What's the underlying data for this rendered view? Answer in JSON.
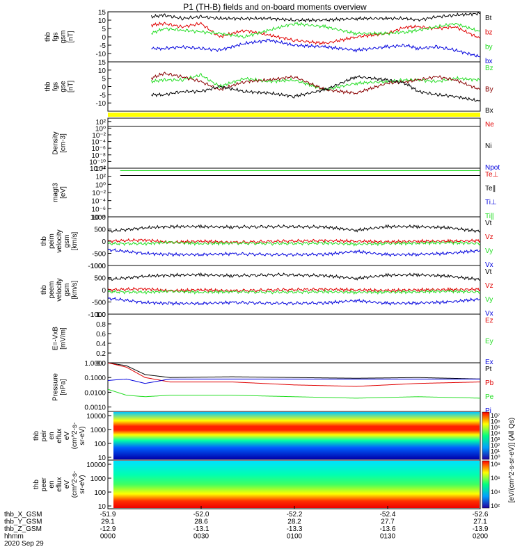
{
  "title": "P1 (TH-B) fields and on-board moments overview",
  "colors": {
    "black": "#000000",
    "red": "#e00000",
    "green": "#22dd22",
    "blue": "#0000dd",
    "darkred": "#880000",
    "yellow": "#ffff00"
  },
  "chart_data": [
    {
      "type": "line",
      "ylabel": [
        "thb",
        "fgs",
        "gsm",
        "[nT]"
      ],
      "ylim": [
        -15,
        15
      ],
      "yticks": [
        {
          "v": 15,
          "t": "15"
        },
        {
          "v": 10,
          "t": "10"
        },
        {
          "v": 5,
          "t": "5"
        },
        {
          "v": 0,
          "t": "0"
        },
        {
          "v": -5,
          "t": "-5"
        },
        {
          "v": -10,
          "t": "-10"
        }
      ],
      "series": [
        {
          "name": "Bt",
          "color": "black",
          "x": [
            7,
            9,
            12,
            15,
            18,
            22,
            26,
            30,
            35,
            40,
            45,
            48,
            50,
            53,
            56,
            60
          ],
          "y": [
            12,
            13,
            11,
            12,
            11,
            11,
            11,
            10,
            10,
            11,
            11,
            11,
            10,
            12,
            13,
            14
          ]
        },
        {
          "name": "bz",
          "color": "red",
          "x": [
            7,
            9,
            12,
            15,
            18,
            22,
            26,
            30,
            35,
            40,
            45,
            48,
            50,
            53,
            56,
            60
          ],
          "y": [
            7,
            8,
            6,
            8,
            0,
            4,
            1,
            -2,
            -4,
            0,
            2,
            6,
            6,
            5,
            6,
            -1
          ]
        },
        {
          "name": "by",
          "color": "green",
          "x": [
            7,
            9,
            12,
            15,
            18,
            22,
            26,
            30,
            35,
            40,
            45,
            48,
            50,
            53,
            56,
            60
          ],
          "y": [
            2,
            5,
            4,
            3,
            2,
            0,
            4,
            8,
            6,
            2,
            2,
            3,
            4,
            6,
            8,
            3
          ]
        },
        {
          "name": "bx",
          "color": "blue",
          "x": [
            7,
            9,
            12,
            15,
            18,
            22,
            26,
            30,
            35,
            40,
            45,
            48,
            50,
            53,
            56,
            60
          ],
          "y": [
            -7,
            -7,
            -6,
            -7,
            -8,
            -4,
            -2,
            -5,
            -6,
            -8,
            -6,
            -5,
            -7,
            -6,
            -8,
            -12
          ]
        }
      ]
    },
    {
      "type": "line",
      "ylabel": [
        "thb",
        "fgs",
        "gse",
        "[nT]"
      ],
      "ylim": [
        -15,
        15
      ],
      "yticks": [
        {
          "v": 15,
          "t": "15"
        },
        {
          "v": 10,
          "t": "10"
        },
        {
          "v": 5,
          "t": "5"
        },
        {
          "v": 0,
          "t": "0"
        },
        {
          "v": -5,
          "t": "-5"
        },
        {
          "v": -10,
          "t": "-10"
        }
      ],
      "series": [
        {
          "name": "Bz",
          "color": "green",
          "x": [
            7,
            9,
            12,
            15,
            18,
            22,
            26,
            30,
            35,
            40,
            45,
            48,
            50,
            53,
            56,
            60
          ],
          "y": [
            3,
            4,
            4,
            7,
            0,
            5,
            3,
            4,
            -2,
            2,
            3,
            4,
            4,
            3,
            5,
            4
          ]
        },
        {
          "name": "By",
          "color": "darkred",
          "x": [
            7,
            9,
            12,
            15,
            18,
            22,
            26,
            30,
            35,
            40,
            45,
            48,
            50,
            53,
            56,
            60
          ],
          "y": [
            5,
            8,
            6,
            3,
            -2,
            3,
            4,
            6,
            -2,
            -4,
            2,
            3,
            4,
            6,
            4,
            -2
          ]
        },
        {
          "name": "Bx",
          "color": "black",
          "x": [
            7,
            9,
            12,
            15,
            18,
            22,
            26,
            30,
            35,
            40,
            45,
            48,
            50,
            53,
            56,
            60
          ],
          "y": [
            -5,
            -5,
            -3,
            -3,
            0,
            -3,
            -4,
            -6,
            -2,
            6,
            4,
            2,
            -3,
            -5,
            -6,
            -9
          ]
        }
      ]
    },
    {
      "type": "line",
      "ylabel": [
        "Density",
        "[cm-3]"
      ],
      "log": true,
      "ylim": [
        -12,
        3
      ],
      "yticks": [
        {
          "v": 2,
          "t": "10²"
        },
        {
          "v": 0,
          "t": "10⁰"
        },
        {
          "v": -2,
          "t": "10⁻²"
        },
        {
          "v": -4,
          "t": "10⁻⁴"
        },
        {
          "v": -6,
          "t": "10⁻⁶"
        },
        {
          "v": -8,
          "t": "10⁻⁸"
        },
        {
          "v": -10,
          "t": "10⁻¹⁰"
        },
        {
          "v": -12,
          "t": "10⁻¹²"
        }
      ],
      "series": [
        {
          "name": "Ne",
          "color": "red",
          "x": [
            0,
            20,
            40,
            60
          ],
          "y": [
            0.6,
            0.6,
            0.6,
            0.6
          ]
        },
        {
          "name": "Ni",
          "color": "black",
          "x": [
            0,
            20,
            40,
            60
          ],
          "y": [
            0.6,
            0.6,
            0.6,
            0.6
          ]
        },
        {
          "name": "Npot",
          "color": "blue",
          "x": [],
          "y": []
        }
      ]
    },
    {
      "type": "line",
      "ylabel": [
        "magt3",
        "[eV]"
      ],
      "log": true,
      "ylim": [
        -8,
        4
      ],
      "yticks": [
        {
          "v": 4,
          "t": "10⁴"
        },
        {
          "v": 2,
          "t": "10²"
        },
        {
          "v": 0,
          "t": "10⁰"
        },
        {
          "v": -2,
          "t": "10⁻²"
        },
        {
          "v": -4,
          "t": "10⁻⁴"
        },
        {
          "v": -6,
          "t": "10⁻⁶"
        },
        {
          "v": -8,
          "t": "10⁻⁸"
        }
      ],
      "series": [
        {
          "name": "Te⊥",
          "color": "red",
          "x": [
            2,
            60
          ],
          "y": [
            2.2,
            2.2
          ]
        },
        {
          "name": "Te∥",
          "color": "black",
          "x": [
            2,
            60
          ],
          "y": [
            2.2,
            2.2
          ]
        },
        {
          "name": "Ti⊥",
          "color": "blue",
          "x": [
            2,
            60
          ],
          "y": [
            3.4,
            3.4
          ]
        },
        {
          "name": "Ti∥",
          "color": "green",
          "x": [
            2,
            60
          ],
          "y": [
            3.4,
            3.4
          ]
        }
      ]
    },
    {
      "type": "line",
      "ylabel": [
        "thb",
        "peim",
        "velocity",
        "gsm",
        "[km/s]"
      ],
      "ylim": [
        -1000,
        1000
      ],
      "yticks": [
        {
          "v": 1000,
          "t": "1000"
        },
        {
          "v": 500,
          "t": "500"
        },
        {
          "v": 0,
          "t": "0"
        },
        {
          "v": -500,
          "t": "-500"
        },
        {
          "v": -1000,
          "t": "-1000"
        }
      ],
      "series": [
        {
          "name": "Vt",
          "color": "black",
          "x": [
            0,
            6,
            10,
            15,
            20,
            28,
            35,
            40,
            45,
            50,
            55,
            60
          ],
          "y": [
            400,
            550,
            600,
            600,
            580,
            600,
            580,
            450,
            600,
            600,
            550,
            400
          ]
        },
        {
          "name": "Vz",
          "color": "red",
          "x": [
            0,
            6,
            10,
            15,
            20,
            28,
            35,
            40,
            45,
            50,
            55,
            60
          ],
          "y": [
            0,
            50,
            -50,
            0,
            -50,
            0,
            20,
            0,
            -30,
            0,
            0,
            20
          ]
        },
        {
          "name": "Vy",
          "color": "green",
          "x": [
            0,
            6,
            10,
            15,
            20,
            28,
            35,
            40,
            45,
            50,
            55,
            60
          ],
          "y": [
            -100,
            -100,
            -50,
            -100,
            -80,
            -100,
            -80,
            -120,
            -100,
            -80,
            -60,
            -100
          ]
        },
        {
          "name": "Vx",
          "color": "blue",
          "x": [
            0,
            6,
            10,
            15,
            20,
            28,
            35,
            40,
            45,
            50,
            55,
            60
          ],
          "y": [
            -350,
            -500,
            -550,
            -550,
            -520,
            -560,
            -540,
            -420,
            -560,
            -540,
            -500,
            -380
          ]
        }
      ]
    },
    {
      "type": "line",
      "ylabel": [
        "thb",
        "peem",
        "velocity",
        "gsm",
        "[km/s]"
      ],
      "ylim": [
        -1000,
        1000
      ],
      "yticks": [
        {
          "v": 1000,
          "t": "1000"
        },
        {
          "v": 500,
          "t": "500"
        },
        {
          "v": 0,
          "t": "0"
        },
        {
          "v": -500,
          "t": "-500"
        },
        {
          "v": -1000,
          "t": "-1000"
        }
      ],
      "series": [
        {
          "name": "Vt",
          "color": "black",
          "x": [
            0,
            6,
            10,
            15,
            20,
            28,
            35,
            40,
            45,
            50,
            55,
            60
          ],
          "y": [
            420,
            560,
            600,
            620,
            580,
            620,
            580,
            470,
            600,
            620,
            560,
            420
          ]
        },
        {
          "name": "Vz",
          "color": "red",
          "x": [
            0,
            6,
            10,
            15,
            20,
            28,
            35,
            40,
            45,
            50,
            55,
            60
          ],
          "y": [
            0,
            40,
            -40,
            0,
            -40,
            0,
            20,
            0,
            -30,
            0,
            10,
            20
          ]
        },
        {
          "name": "Vy",
          "color": "green",
          "x": [
            0,
            6,
            10,
            15,
            20,
            28,
            35,
            40,
            45,
            50,
            55,
            60
          ],
          "y": [
            -80,
            -100,
            -60,
            -100,
            -80,
            -100,
            -80,
            -100,
            -100,
            -80,
            -60,
            -90
          ]
        },
        {
          "name": "Vx",
          "color": "blue",
          "x": [
            0,
            6,
            10,
            15,
            20,
            28,
            35,
            40,
            45,
            50,
            55,
            60
          ],
          "y": [
            -350,
            -520,
            -560,
            -560,
            -520,
            -560,
            -540,
            -440,
            -560,
            -540,
            -500,
            -380
          ]
        }
      ]
    },
    {
      "type": "line",
      "ylabel": [
        "E=-VxB",
        "[mV/m]"
      ],
      "ylim": [
        0,
        1
      ],
      "yticks": [
        {
          "v": 1,
          "t": "1.0"
        },
        {
          "v": 0.8,
          "t": "0.8"
        },
        {
          "v": 0.6,
          "t": "0.6"
        },
        {
          "v": 0.4,
          "t": "0.4"
        },
        {
          "v": 0.2,
          "t": "0.2"
        },
        {
          "v": 0,
          "t": "0.0"
        }
      ],
      "series": [
        {
          "name": "Ez",
          "color": "red",
          "x": [],
          "y": []
        },
        {
          "name": "Ey",
          "color": "green",
          "x": [],
          "y": []
        },
        {
          "name": "Ex",
          "color": "blue",
          "x": [],
          "y": []
        }
      ]
    },
    {
      "type": "line",
      "ylabel": [
        "Pressure",
        "[nPa]"
      ],
      "log": true,
      "ylim": [
        -3.3,
        0
      ],
      "yticks": [
        {
          "v": 0,
          "t": "1.0000"
        },
        {
          "v": -1,
          "t": "0.1000"
        },
        {
          "v": -2,
          "t": "0.0100"
        },
        {
          "v": -3,
          "t": "0.0010"
        }
      ],
      "series": [
        {
          "name": "Pt",
          "color": "black",
          "x": [
            0,
            3,
            6,
            10,
            20,
            30,
            40,
            50,
            60
          ],
          "y": [
            0,
            -0.2,
            -0.8,
            -1.0,
            -0.95,
            -1.0,
            -1.05,
            -1.0,
            -1.1
          ]
        },
        {
          "name": "Pb",
          "color": "red",
          "x": [
            0,
            3,
            6,
            10,
            20,
            30,
            40,
            50,
            60
          ],
          "y": [
            0,
            -0.3,
            -1.0,
            -1.3,
            -1.3,
            -1.5,
            -1.6,
            -1.4,
            -1.3
          ]
        },
        {
          "name": "Pe",
          "color": "green",
          "x": [
            0,
            3,
            6,
            10,
            20,
            30,
            40,
            50,
            60
          ],
          "y": [
            -1.8,
            -2.2,
            -2.3,
            -2.2,
            -2.2,
            -2.3,
            -2.4,
            -2.3,
            -2.4
          ]
        },
        {
          "name": "Pi",
          "color": "blue",
          "x": [
            0,
            3,
            6,
            10,
            20,
            30,
            40,
            50,
            60
          ],
          "y": [
            -1.2,
            -1.1,
            -1.4,
            -1.1,
            -1.1,
            -1.1,
            -1.1,
            -1.1,
            -1.1
          ]
        }
      ]
    },
    {
      "type": "heatmap",
      "ylabel": [
        "thb",
        "peir",
        "en",
        "eflux",
        "eV",
        "(cm^2-s-",
        "sr-eV)"
      ],
      "yticks": [
        {
          "v": 4,
          "t": "10000"
        },
        {
          "v": 3,
          "t": "1000"
        },
        {
          "v": 2,
          "t": "100"
        },
        {
          "v": 1,
          "t": "10"
        }
      ],
      "colorbar": {
        "ticks": [
          "10⁷",
          "10⁶",
          "10⁵",
          "10⁴",
          "10³",
          "10²",
          "10¹",
          "10⁰"
        ]
      }
    },
    {
      "type": "heatmap",
      "ylabel": [
        "thb",
        "peer",
        "en",
        "eflux",
        "eV",
        "(cm^2-s-",
        "sr-eV)"
      ],
      "yticks": [
        {
          "v": 4,
          "t": "10000"
        },
        {
          "v": 3,
          "t": "1000"
        },
        {
          "v": 2,
          "t": "100"
        },
        {
          "v": 1,
          "t": "10"
        }
      ],
      "colorbar": {
        "ticks": [
          "10⁸",
          "10⁶",
          "10⁴",
          "10²"
        ]
      }
    }
  ],
  "colorbar_label": "[eV/(cm^2-s-sr-eV)] (All Qs)",
  "xaxis": {
    "rows": [
      {
        "label": "thb_X_GSM",
        "values": [
          "-51.9",
          "-52.0",
          "-52.2",
          "-52.4",
          "-52.6"
        ]
      },
      {
        "label": "thb_Y_GSM",
        "values": [
          "29.1",
          "28.6",
          "28.2",
          "27.7",
          "27.1"
        ]
      },
      {
        "label": "thb_Z_GSM",
        "values": [
          "-12.9",
          "-13.1",
          "-13.3",
          "-13.6",
          "-13.9"
        ]
      },
      {
        "label": "hhmm",
        "values": [
          "0000",
          "0030",
          "0100",
          "0130",
          "0200"
        ]
      }
    ],
    "date": "2020 Sep 29",
    "time_minutes": [
      0,
      30,
      60,
      90,
      120
    ]
  }
}
